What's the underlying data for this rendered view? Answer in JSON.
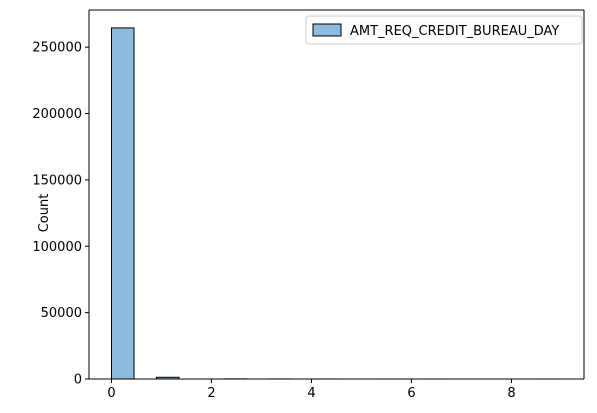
{
  "chart_data": {
    "type": "bar",
    "subtype": "histogram",
    "title": "",
    "xlabel": "",
    "ylabel": "Count",
    "xlim": [
      -0.45,
      9.45
    ],
    "ylim": [
      0,
      278000
    ],
    "x_ticks": [
      0,
      2,
      4,
      6,
      8
    ],
    "y_ticks": [
      0,
      50000,
      100000,
      150000,
      200000,
      250000
    ],
    "grid": false,
    "legend_position": "top-right",
    "series": [
      {
        "name": "AMT_REQ_CREDIT_BUREAU_DAY",
        "color": "#8ebadb",
        "edge_color": "#000000",
        "bin_edges": [
          0,
          0.45,
          0.9,
          1.35,
          1.8,
          2.25,
          2.7,
          3.15,
          3.6,
          4.05,
          4.5,
          4.95,
          5.4,
          5.85,
          6.3,
          6.75,
          7.2,
          7.65,
          8.1,
          8.55,
          9.0
        ],
        "values": [
          264503,
          0,
          1292,
          0,
          0,
          106,
          0,
          45,
          0,
          26,
          0,
          0,
          9,
          0,
          8,
          0,
          0,
          0,
          0,
          2
        ]
      }
    ]
  }
}
